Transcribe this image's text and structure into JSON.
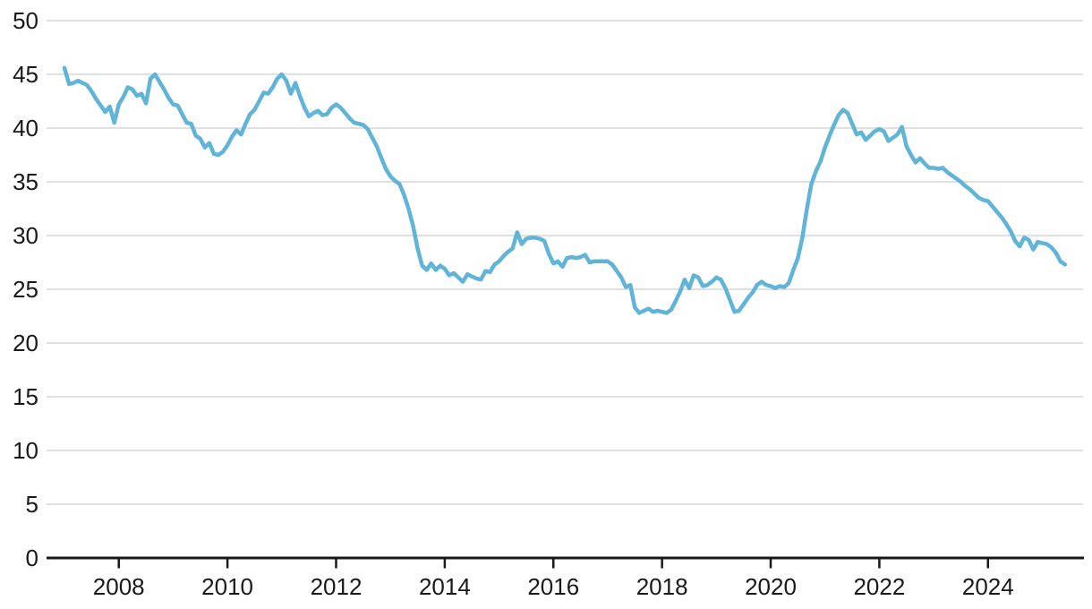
{
  "chart_data": {
    "type": "line",
    "title": "",
    "xlabel": "",
    "ylabel": "",
    "legend": "none",
    "grid": "horizontal",
    "xlim": [
      2006.67,
      2025.75
    ],
    "ylim": [
      0,
      50
    ],
    "x_ticks": [
      2008,
      2010,
      2012,
      2014,
      2016,
      2018,
      2020,
      2022,
      2024
    ],
    "x_tick_labels": [
      "2008",
      "2010",
      "2012",
      "2014",
      "2016",
      "2018",
      "2020",
      "2022",
      "2024"
    ],
    "y_ticks": [
      0,
      5,
      10,
      15,
      20,
      25,
      30,
      35,
      40,
      45,
      50
    ],
    "y_tick_labels": [
      "0",
      "5",
      "10",
      "15",
      "20",
      "25",
      "30",
      "35",
      "40",
      "45",
      "50"
    ],
    "colors": {
      "line": "#5fb4d8",
      "grid": "#e0e0e0",
      "axis": "#191919",
      "tick_label": "#191919",
      "background": "#ffffff"
    },
    "series": [
      {
        "name": "monthly-value",
        "x_start_year": 2007.0,
        "x_step_years": 0.0833333,
        "values": [
          45.6,
          44.1,
          44.2,
          44.4,
          44.2,
          44.0,
          43.4,
          42.7,
          42.1,
          41.5,
          42.0,
          40.5,
          42.2,
          42.9,
          43.8,
          43.6,
          43.0,
          43.2,
          42.3,
          44.6,
          45.0,
          44.3,
          43.6,
          42.8,
          42.2,
          42.1,
          41.3,
          40.5,
          40.4,
          39.3,
          39.0,
          38.2,
          38.6,
          37.6,
          37.5,
          37.8,
          38.4,
          39.2,
          39.8,
          39.4,
          40.4,
          41.3,
          41.7,
          42.5,
          43.3,
          43.2,
          43.8,
          44.6,
          45.0,
          44.4,
          43.2,
          44.2,
          43.0,
          41.9,
          41.1,
          41.4,
          41.6,
          41.2,
          41.3,
          41.9,
          42.2,
          41.9,
          41.4,
          40.9,
          40.5,
          40.4,
          40.3,
          39.9,
          39.1,
          38.3,
          37.2,
          36.2,
          35.5,
          35.1,
          34.8,
          33.8,
          32.5,
          30.9,
          28.8,
          27.2,
          26.8,
          27.4,
          26.8,
          27.2,
          26.9,
          26.3,
          26.5,
          26.1,
          25.7,
          26.4,
          26.2,
          26.0,
          25.9,
          26.7,
          26.6,
          27.3,
          27.6,
          28.1,
          28.5,
          28.8,
          30.3,
          29.2,
          29.7,
          29.8,
          29.8,
          29.7,
          29.5,
          28.3,
          27.4,
          27.6,
          27.1,
          27.9,
          28.0,
          27.9,
          28.0,
          28.2,
          27.5,
          27.6,
          27.6,
          27.6,
          27.6,
          27.3,
          26.7,
          26.1,
          25.2,
          25.4,
          23.3,
          22.8,
          23.0,
          23.2,
          22.9,
          23.0,
          22.9,
          22.8,
          23.1,
          23.9,
          24.8,
          25.9,
          25.1,
          26.3,
          26.1,
          25.3,
          25.4,
          25.7,
          26.1,
          25.9,
          25.1,
          24.0,
          22.9,
          23.0,
          23.6,
          24.2,
          24.7,
          25.4,
          25.7,
          25.4,
          25.3,
          25.1,
          25.3,
          25.2,
          25.6,
          26.8,
          27.9,
          29.8,
          32.5,
          34.8,
          36.0,
          36.9,
          38.2,
          39.3,
          40.3,
          41.2,
          41.7,
          41.4,
          40.4,
          39.4,
          39.6,
          38.9,
          39.3,
          39.7,
          39.9,
          39.7,
          38.8,
          39.1,
          39.4,
          40.1,
          38.3,
          37.5,
          36.8,
          37.2,
          36.7,
          36.3,
          36.3,
          36.2,
          36.3,
          35.9,
          35.6,
          35.3,
          35.0,
          34.6,
          34.3,
          33.9,
          33.5,
          33.3,
          33.2,
          32.7,
          32.2,
          31.7,
          31.1,
          30.4,
          29.5,
          29.0,
          29.8,
          29.6,
          28.7,
          29.4,
          29.3,
          29.2,
          28.9,
          28.4,
          27.6,
          27.3
        ]
      }
    ]
  }
}
